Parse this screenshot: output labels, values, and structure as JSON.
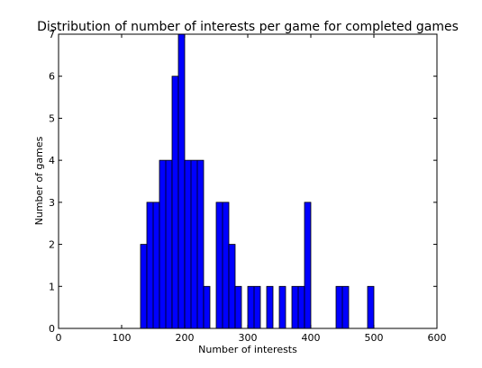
{
  "chart_data": {
    "type": "bar",
    "title": "Distribution of number of interests per game for completed games",
    "xlabel": "Number of interests",
    "ylabel": "Number of games",
    "xlim": [
      0,
      600
    ],
    "ylim": [
      0,
      7
    ],
    "xticks": [
      "0",
      "100",
      "200",
      "300",
      "400",
      "500",
      "600"
    ],
    "yticks": [
      "0",
      "1",
      "2",
      "3",
      "4",
      "5",
      "6",
      "7"
    ],
    "grid": false,
    "bar_color": "#0000ff",
    "bins": [
      {
        "start": 130,
        "end": 140,
        "count": 2
      },
      {
        "start": 140,
        "end": 160,
        "count": 3
      },
      {
        "start": 160,
        "end": 180,
        "count": 4
      },
      {
        "start": 180,
        "end": 190,
        "count": 6
      },
      {
        "start": 190,
        "end": 200,
        "count": 7
      },
      {
        "start": 200,
        "end": 230,
        "count": 4
      },
      {
        "start": 230,
        "end": 240,
        "count": 1
      },
      {
        "start": 250,
        "end": 270,
        "count": 3
      },
      {
        "start": 270,
        "end": 280,
        "count": 2
      },
      {
        "start": 280,
        "end": 290,
        "count": 1
      },
      {
        "start": 300,
        "end": 320,
        "count": 1
      },
      {
        "start": 330,
        "end": 340,
        "count": 1
      },
      {
        "start": 350,
        "end": 360,
        "count": 1
      },
      {
        "start": 370,
        "end": 390,
        "count": 1
      },
      {
        "start": 390,
        "end": 400,
        "count": 3
      },
      {
        "start": 440,
        "end": 460,
        "count": 1
      },
      {
        "start": 490,
        "end": 500,
        "count": 1
      }
    ]
  }
}
